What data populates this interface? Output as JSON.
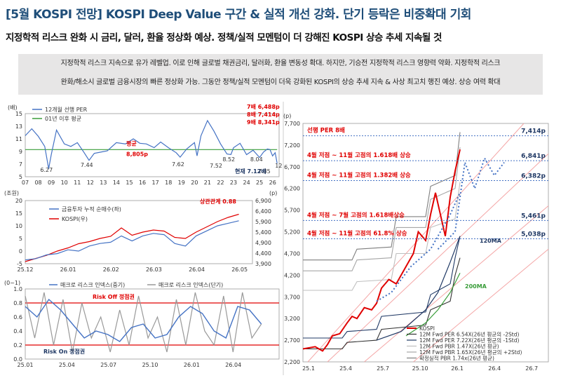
{
  "header": {
    "title": "[5월 KOSPI 전망] KOSPI Deep Value 구간 & 실적 개선 강화. 단기 등락은 비중확대 기회",
    "subtitle": "지정학적 리스크 완화 시 금리, 달러, 환율 정상화 예상. 정책/실적 모멘텀이 더 강해진 KOSPI 상승 추세 지속될 것"
  },
  "summary": {
    "line1": "지정학적 리스크 지속으로 유가 레벨업. 이로 인해 글로벌 채권금리, 달러화, 환율 변동성 확대. 하지만, 기승전 지정학적 리스크 영향력 약화. 지정학적 리스크",
    "line2": "완화/해소시 글로벌 금융시장의 빠른 정상화 가능. 그동안 정책/실적 모멘텀이 더욱 강화된 KOSPI의 상승 추세 지속 & 사상 최고치 행진 예상. 상승 여력 확대"
  },
  "colors": {
    "blue": "#4472c4",
    "red": "#e00000",
    "green": "#3a9d3a",
    "navy": "#1f3864",
    "gray": "#999999",
    "darkblue": "#1f4e79",
    "lightred": "#f4a6a6"
  },
  "chart_data": [
    {
      "type": "line",
      "id": "per",
      "unit_label": "(배)",
      "xlabel": "",
      "ylabel": "",
      "ylim": [
        5,
        15
      ],
      "y_ticks": [
        5,
        7,
        9,
        11,
        13,
        15
      ],
      "x_tick_labels": [
        "07",
        "08",
        "09",
        "10",
        "11",
        "12",
        "13",
        "14",
        "15",
        "16",
        "17",
        "18",
        "19",
        "20",
        "21",
        "22",
        "23",
        "24",
        "25",
        "26"
      ],
      "legend": [
        "12개월 선행 PER",
        "01년 이후 평균"
      ],
      "series": [
        {
          "name": "12개월 선행 PER",
          "x": [
            2007,
            2007.5,
            2008,
            2008.5,
            2008.8,
            2009,
            2009.4,
            2010,
            2010.5,
            2011,
            2011.5,
            2011.9,
            2012.3,
            2012.8,
            2013.3,
            2014,
            2014.7,
            2015.3,
            2015.8,
            2016.3,
            2016.9,
            2017.4,
            2018,
            2018.6,
            2018.9,
            2019.4,
            2020,
            2020.2,
            2020.5,
            2021,
            2021.5,
            2022,
            2022.5,
            2022.8,
            2023,
            2023.5,
            2024,
            2024.5,
            2025,
            2025.3,
            2025.6,
            2025.8,
            2026,
            2026.2,
            2026.35
          ],
          "y": [
            11.5,
            12.6,
            11.4,
            9.8,
            6.27,
            8.5,
            12.4,
            10.2,
            9.8,
            10.4,
            8.9,
            7.6,
            8.7,
            8.9,
            9.1,
            10.4,
            10.2,
            11.0,
            10.3,
            10.2,
            9.6,
            10.5,
            9.6,
            8.8,
            8.1,
            9.4,
            10.4,
            8.3,
            11.5,
            13.9,
            12.2,
            10.2,
            8.6,
            8.52,
            9.6,
            10.3,
            8.5,
            9.2,
            8.04,
            8.9,
            9.4,
            9.3,
            8.3,
            8.8,
            7.12
          ]
        },
        {
          "name": "01년 이후 평균",
          "x": [
            2007,
            2026.35
          ],
          "y": [
            9.3,
            9.3
          ]
        }
      ],
      "annotations": [
        "7배 6,488p",
        "8배 7,414p",
        "9배 8,341p",
        "6.27",
        "7.44",
        "7.62",
        "7.52",
        "8.52",
        "8.04",
        "7.85",
        "12",
        "평균",
        "8,805p",
        "현재 7.12배"
      ]
    },
    {
      "type": "line",
      "id": "flow",
      "left_unit": "(조원)",
      "right_unit": "(p)",
      "ylim_left": [
        -5,
        20
      ],
      "y_ticks_left": [
        -5,
        0,
        5,
        10,
        15,
        20
      ],
      "ylim_right": [
        3900,
        6900
      ],
      "y_ticks_right": [
        "3,900",
        "4,400",
        "4,900",
        "5,400",
        "5,900",
        "6,400",
        "6,900"
      ],
      "x_tick_labels": [
        "25.12",
        "26.01",
        "26.02",
        "26.03",
        "26.04",
        "26.05"
      ],
      "annotation": "상관관계 0.88",
      "series": [
        {
          "name": "금융투자 누적 순매수(좌)",
          "x": [
            0,
            0.05,
            0.1,
            0.15,
            0.2,
            0.25,
            0.3,
            0.35,
            0.4,
            0.45,
            0.5,
            0.55,
            0.6,
            0.65,
            0.7,
            0.75,
            0.8,
            0.85,
            0.9,
            0.95,
            1.0
          ],
          "y": [
            -3.5,
            -3,
            -1.5,
            -1,
            0.5,
            0,
            2,
            3,
            3.5,
            6,
            4,
            6,
            7,
            6.5,
            3,
            2,
            6,
            8,
            10,
            11,
            12
          ]
        },
        {
          "name": "KOSPI(우)",
          "x": [
            0,
            0.05,
            0.1,
            0.15,
            0.2,
            0.25,
            0.3,
            0.35,
            0.4,
            0.45,
            0.5,
            0.55,
            0.6,
            0.65,
            0.7,
            0.75,
            0.8,
            0.85,
            0.9,
            0.95,
            1.0
          ],
          "y": [
            4000,
            4150,
            4300,
            4500,
            4650,
            4850,
            4950,
            5100,
            5200,
            5600,
            5250,
            5400,
            5500,
            5450,
            5150,
            5100,
            5400,
            5650,
            5900,
            6100,
            6250
          ]
        }
      ]
    },
    {
      "type": "line",
      "id": "risk",
      "unit_label": "(0~1)",
      "ylim": [
        0,
        1
      ],
      "y_ticks": [
        0.0,
        0.2,
        0.4,
        0.6,
        0.8,
        1.0
      ],
      "x_tick_labels": [
        "25.01",
        "25.04",
        "25.07",
        "25.10",
        "26.01",
        "26.04"
      ],
      "thresholds": [
        0.8,
        0.2
      ],
      "labels": [
        "Risk Off 정점권",
        "Risk On 정점권"
      ],
      "series": [
        {
          "name": "매크로 리스크 인덱스(중기)",
          "x": [
            0,
            0.05,
            0.1,
            0.15,
            0.2,
            0.25,
            0.3,
            0.35,
            0.4,
            0.45,
            0.5,
            0.55,
            0.6,
            0.65,
            0.7,
            0.75,
            0.8,
            0.85,
            0.9,
            0.95,
            1.0
          ],
          "y": [
            0.75,
            0.6,
            0.85,
            0.7,
            0.5,
            0.3,
            0.4,
            0.35,
            0.25,
            0.45,
            0.5,
            0.3,
            0.35,
            0.6,
            0.75,
            0.65,
            0.4,
            0.3,
            0.75,
            0.7,
            0.5
          ]
        },
        {
          "name": "매크로 리스크 인덱스(단기)",
          "x": [
            0,
            0.04,
            0.08,
            0.12,
            0.16,
            0.2,
            0.24,
            0.28,
            0.32,
            0.36,
            0.4,
            0.44,
            0.48,
            0.52,
            0.56,
            0.6,
            0.64,
            0.68,
            0.72,
            0.76,
            0.8,
            0.84,
            0.88,
            0.92,
            0.96,
            1.0
          ],
          "y": [
            0.9,
            0.3,
            0.95,
            0.2,
            0.85,
            0.1,
            0.8,
            0.3,
            0.6,
            0.1,
            0.7,
            0.2,
            0.9,
            0.3,
            0.6,
            0.1,
            0.85,
            0.2,
            0.95,
            0.4,
            0.2,
            0.9,
            0.1,
            0.95,
            0.3,
            0.5
          ]
        }
      ]
    },
    {
      "type": "line",
      "id": "kospi",
      "unit_label": "(p)",
      "ylim": [
        2200,
        7700
      ],
      "y_ticks": [
        "2,200",
        "2,700",
        "3,200",
        "3,700",
        "4,200",
        "4,700",
        "5,200",
        "5,700",
        "6,200",
        "6,700",
        "7,200",
        "7,700"
      ],
      "x_tick_labels": [
        "25.1",
        "25.4",
        "25.7",
        "25.10",
        "26.1",
        "26.4",
        "26.7"
      ],
      "levels": [
        {
          "label": "선행 PER 8배",
          "value_label": "7,414p",
          "value": 7414
        },
        {
          "label": "4월 저점 ~ 11월 고점의 1.618배 상승",
          "value_label": "6,841p",
          "value": 6841
        },
        {
          "label": "4월 저점 ~ 11월 고점의 1.382배 상승",
          "value_label": "6,382p",
          "value": 6382
        },
        {
          "label": "4월 저점 ~ 7월 고점의 1.618배상승",
          "value_label": "5,461p",
          "value": 5461
        },
        {
          "label": "4월 저점 ~ 11월 고점의 61.8% 상승",
          "value_label": "5,038p",
          "value": 5038
        }
      ],
      "ma_labels": [
        "120MA",
        "200MA"
      ],
      "legend": [
        "KOSPI",
        "12M Fwd PER 6.54X(26년 평균의 -2Std)",
        "12M Fwd PER 7.22X(26년 평균의 -1Std)",
        "12M Fwd PBR 1.47X(26년 평균)",
        "12M Fwd PBR 1.65X(26년 평균의 +2Std)",
        "확정실적 PBR 1.74x(26년 평균)"
      ],
      "series": [
        {
          "name": "KOSPI",
          "x": [
            0,
            0.05,
            0.08,
            0.1,
            0.12,
            0.15,
            0.18,
            0.2,
            0.22,
            0.25,
            0.28,
            0.3,
            0.32,
            0.35,
            0.38,
            0.4,
            0.42,
            0.45,
            0.47,
            0.5,
            0.52,
            0.54,
            0.56,
            0.58,
            0.6,
            0.62,
            0.64
          ],
          "y": [
            2500,
            2550,
            2450,
            2600,
            2800,
            2850,
            3100,
            3250,
            3200,
            3450,
            3400,
            3550,
            3900,
            4100,
            4000,
            4200,
            4400,
            4700,
            5200,
            5000,
            5600,
            6100,
            5600,
            5100,
            6000,
            6600,
            7100
          ]
        },
        {
          "name": "12M Fwd PER 6.54X(26년 평균의 -2Std)",
          "x": [
            0,
            0.16,
            0.18,
            0.3,
            0.32,
            0.5,
            0.52,
            0.6,
            0.62,
            0.64
          ],
          "y": [
            2500,
            2500,
            2650,
            2700,
            2950,
            3050,
            3400,
            3600,
            4200,
            4600
          ]
        },
        {
          "name": "12M Fwd PER 7.22X(26년 평균의 -1Std)",
          "x": [
            0,
            0.16,
            0.18,
            0.3,
            0.32,
            0.5,
            0.52,
            0.6,
            0.62,
            0.64
          ],
          "y": [
            2750,
            2750,
            2900,
            2950,
            3250,
            3350,
            3750,
            4000,
            4600,
            5100
          ]
        },
        {
          "name": "12M Fwd PBR 1.47X(26년 평균)",
          "x": [
            0,
            0.2,
            0.22,
            0.36,
            0.38,
            0.5,
            0.52,
            0.62,
            0.64
          ],
          "y": [
            3850,
            3850,
            4050,
            4100,
            4700,
            4700,
            5300,
            5500,
            6350
          ]
        },
        {
          "name": "12M Fwd PBR 1.65X(26년 평균의 +2Std)",
          "x": [
            0,
            0.2,
            0.22,
            0.36,
            0.38,
            0.5,
            0.52,
            0.62,
            0.64
          ],
          "y": [
            4300,
            4300,
            4550,
            4600,
            5300,
            5300,
            5950,
            6200,
            7150
          ]
        },
        {
          "name": "확정실적 PBR 1.74x(26년 평균)",
          "x": [
            0,
            0.2,
            0.22,
            0.36,
            0.38,
            0.5,
            0.52,
            0.62,
            0.64
          ],
          "y": [
            4550,
            4550,
            4800,
            4850,
            5550,
            5550,
            6250,
            6500,
            7500
          ]
        },
        {
          "name": "120MA",
          "x": [
            0.3,
            0.4,
            0.5,
            0.55,
            0.6,
            0.64
          ],
          "y": [
            2700,
            2900,
            3400,
            3800,
            4500,
            5100
          ]
        },
        {
          "name": "200MA",
          "x": [
            0.42,
            0.5,
            0.55,
            0.6,
            0.64
          ],
          "y": [
            2800,
            3100,
            3400,
            3800,
            4250
          ]
        }
      ]
    }
  ]
}
